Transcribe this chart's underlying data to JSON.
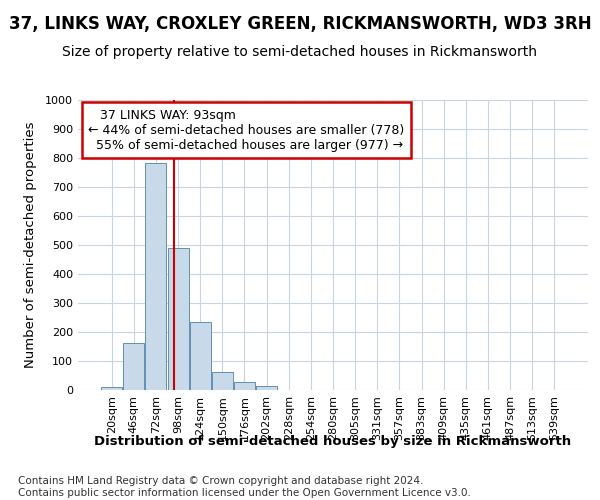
{
  "title": "37, LINKS WAY, CROXLEY GREEN, RICKMANSWORTH, WD3 3RH",
  "subtitle": "Size of property relative to semi-detached houses in Rickmansworth",
  "xlabel": "Distribution of semi-detached houses by size in Rickmansworth",
  "ylabel": "Number of semi-detached properties",
  "categories": [
    "20sqm",
    "46sqm",
    "72sqm",
    "98sqm",
    "124sqm",
    "150sqm",
    "176sqm",
    "202sqm",
    "228sqm",
    "254sqm",
    "280sqm",
    "305sqm",
    "331sqm",
    "357sqm",
    "383sqm",
    "409sqm",
    "435sqm",
    "461sqm",
    "487sqm",
    "513sqm",
    "539sqm"
  ],
  "values": [
    10,
    163,
    782,
    490,
    235,
    63,
    28,
    13,
    0,
    0,
    0,
    0,
    0,
    0,
    0,
    0,
    0,
    0,
    0,
    0,
    0
  ],
  "bar_color": "#c8d9ea",
  "bar_edge_color": "#6090b0",
  "grid_color": "#c8d4e0",
  "subject_label": "37 LINKS WAY: 93sqm",
  "smaller_pct": "44% of semi-detached houses are smaller (778)",
  "larger_pct": "55% of semi-detached houses are larger (977)",
  "annotation_box_edge_color": "#cc0000",
  "subject_line_color": "#cc0000",
  "ylim": [
    0,
    1000
  ],
  "yticks": [
    0,
    100,
    200,
    300,
    400,
    500,
    600,
    700,
    800,
    900,
    1000
  ],
  "footnote": "Contains HM Land Registry data © Crown copyright and database right 2024.\nContains public sector information licensed under the Open Government Licence v3.0.",
  "title_fontsize": 12,
  "subtitle_fontsize": 10,
  "axis_label_fontsize": 9.5,
  "tick_fontsize": 8,
  "annotation_fontsize": 9,
  "footnote_fontsize": 7.5
}
